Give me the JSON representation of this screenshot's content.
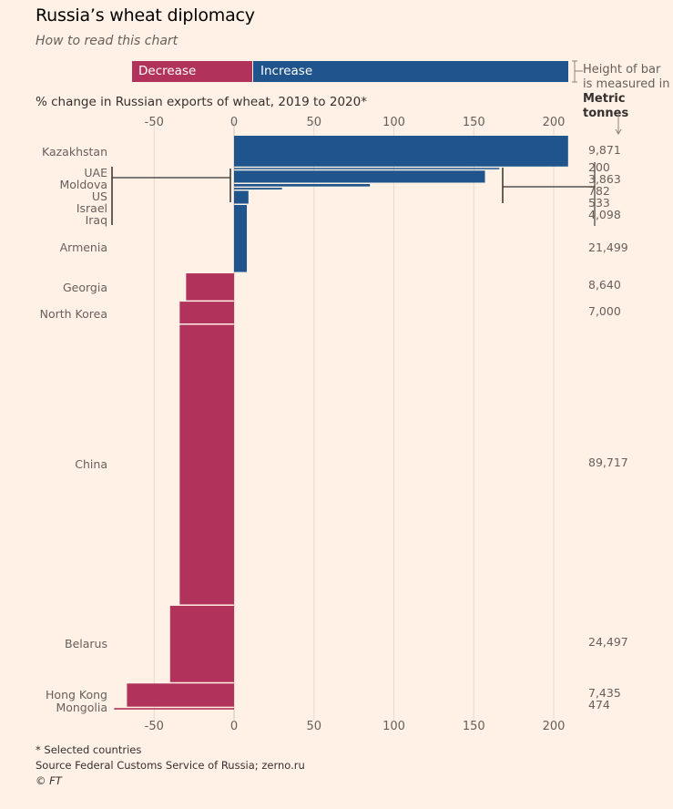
{
  "title": "Russia’s wheat diplomacy",
  "subtitle": "How to read this chart",
  "legend": {
    "decrease_label": "Decrease",
    "increase_label": "Increase",
    "note_line1": "Height of bar",
    "note_line2": "is measured in",
    "note_line3": "Metric tonnes",
    "decrease_color": "#b1325a",
    "increase_color": "#1f558c"
  },
  "footer": {
    "note": "* Selected countries",
    "source": "Source Federal Customs Service of Russia; zerno.ru",
    "copyright": "© FT"
  },
  "chart_data": {
    "type": "bar",
    "orientation": "horizontal (variable-height bars)",
    "title": "Russia’s wheat diplomacy",
    "xlabel": "% change in Russian exports of wheat, 2019 to 2020*",
    "bar_height_measure": "Metric tonnes",
    "xlim": [
      -75,
      210
    ],
    "xticks": [
      -50,
      0,
      50,
      100,
      150,
      200
    ],
    "xtick_labels": [
      "-50",
      "0",
      "50",
      "100",
      "150",
      "200"
    ],
    "grid": true,
    "categories": [
      "Kazakhstan",
      "UAE",
      "Moldova",
      "US",
      "Israel",
      "Iraq",
      "Armenia",
      "Georgia",
      "North Korea",
      "China",
      "Belarus",
      "Hong Kong",
      "Mongolia"
    ],
    "pct_change": [
      209,
      166,
      157,
      85,
      30,
      9,
      8,
      -30,
      -34,
      -34,
      -40,
      -67,
      -75
    ],
    "tonnes": [
      9871,
      200,
      3863,
      782,
      533,
      4098,
      21499,
      8640,
      7000,
      89717,
      24497,
      7435,
      474
    ],
    "tonnes_labels": [
      "9,871",
      "200",
      "3,863",
      "782",
      "533",
      "4,098",
      "21,499",
      "8,640",
      "7,000",
      "89,717",
      "24,497",
      "7,435",
      "474"
    ],
    "grouped_small": [
      "UAE",
      "Moldova",
      "US",
      "Israel",
      "Iraq"
    ]
  }
}
